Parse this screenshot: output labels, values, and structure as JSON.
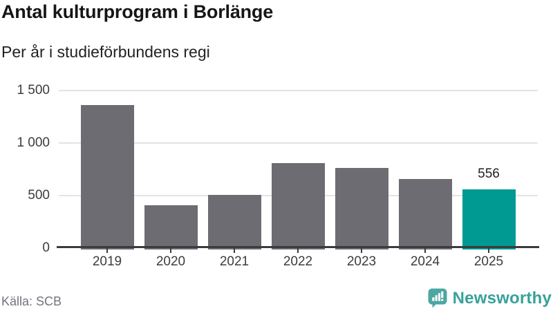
{
  "header": {
    "title": "Antal kulturprogram i Borlänge",
    "subtitle": "Per år i studieförbundens regi"
  },
  "chart_data": {
    "type": "bar",
    "title": "Antal kulturprogram i Borlänge",
    "subtitle": "Per år i studieförbundens regi",
    "categories": [
      "2019",
      "2020",
      "2021",
      "2022",
      "2023",
      "2024",
      "2025"
    ],
    "values": [
      1360,
      410,
      505,
      810,
      760,
      655,
      556
    ],
    "highlight_category": "2025",
    "bar_labels": {
      "2025": "556"
    },
    "xlabel": "",
    "ylabel": "",
    "ylim": [
      0,
      1500
    ],
    "yticks": [
      {
        "value": 0,
        "label": "0"
      },
      {
        "value": 500,
        "label": "500"
      },
      {
        "value": 1000,
        "label": "1 000"
      },
      {
        "value": 1500,
        "label": "1 500"
      }
    ],
    "grid": true,
    "legend": false,
    "colors": {
      "bar": "#6d6c72",
      "highlight": "#009a93",
      "gridline": "#e3e3e3",
      "axis": "#3b3b3b"
    }
  },
  "footer": {
    "source": "Källa: SCB",
    "brand": "Newsworthy",
    "brand_icon": "bar-chart-speech-bubble-icon",
    "brand_colors": {
      "icon": "#4ca6a1",
      "text": "#38a19b"
    }
  }
}
